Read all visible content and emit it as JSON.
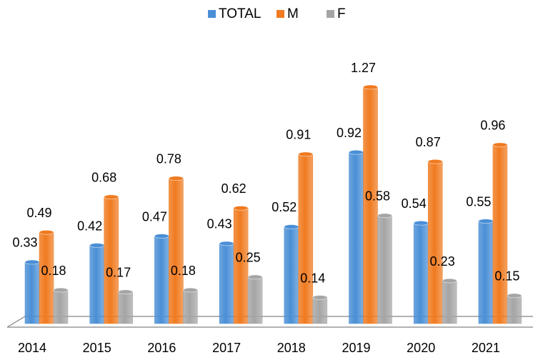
{
  "chart_data": {
    "type": "bar",
    "categories": [
      "2014",
      "2015",
      "2016",
      "2017",
      "2018",
      "2019",
      "2020",
      "2021"
    ],
    "series": [
      {
        "name": "TOTAL",
        "color": "#4a8fd6",
        "values": [
          0.33,
          0.42,
          0.47,
          0.43,
          0.52,
          0.92,
          0.54,
          0.55
        ]
      },
      {
        "name": "M",
        "color": "#f07a1f",
        "values": [
          0.49,
          0.68,
          0.78,
          0.62,
          0.91,
          1.27,
          0.87,
          0.96
        ]
      },
      {
        "name": "F",
        "color": "#a5a5a5",
        "values": [
          0.18,
          0.17,
          0.18,
          0.25,
          0.14,
          0.58,
          0.23,
          0.15
        ]
      }
    ],
    "legend": "top"
  }
}
